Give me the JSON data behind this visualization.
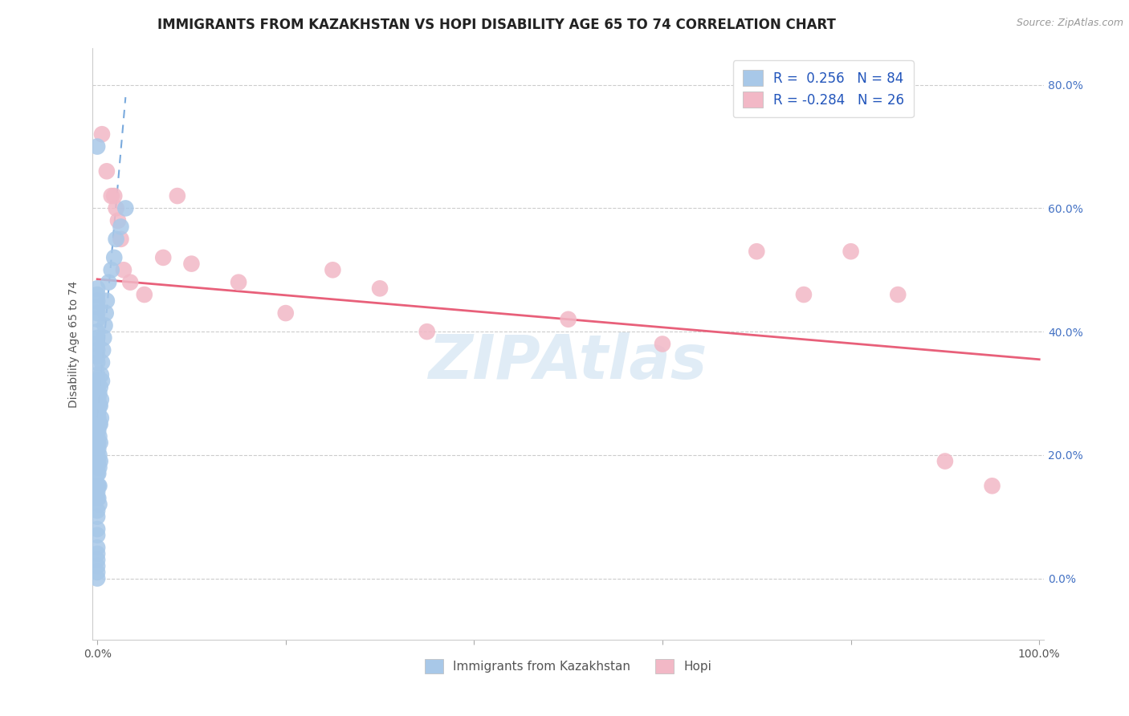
{
  "title": "IMMIGRANTS FROM KAZAKHSTAN VS HOPI DISABILITY AGE 65 TO 74 CORRELATION CHART",
  "source": "Source: ZipAtlas.com",
  "ylabel": "Disability Age 65 to 74",
  "xlim": [
    -0.005,
    1.005
  ],
  "ylim": [
    -0.1,
    0.86
  ],
  "xticks": [
    0.0,
    0.2,
    0.4,
    0.6,
    0.8,
    1.0
  ],
  "xticklabels": [
    "0.0%",
    "",
    "",
    "",
    "",
    "100.0%"
  ],
  "yticks": [
    0.0,
    0.2,
    0.4,
    0.6,
    0.8
  ],
  "yticklabels_right": [
    "0.0%",
    "20.0%",
    "40.0%",
    "60.0%",
    "80.0%"
  ],
  "blue_color": "#a8c8e8",
  "pink_color": "#f2b8c6",
  "blue_line_color": "#7aaadd",
  "pink_line_color": "#e8607a",
  "watermark": "ZIPAtlas",
  "title_fontsize": 12,
  "label_fontsize": 10,
  "tick_fontsize": 10,
  "kazakhstan_x": [
    0.0,
    0.0,
    0.0,
    0.0,
    0.0,
    0.0,
    0.0,
    0.0,
    0.0,
    0.0,
    0.0,
    0.0,
    0.0,
    0.0,
    0.0,
    0.0,
    0.0,
    0.0,
    0.0,
    0.0,
    0.0,
    0.0,
    0.0,
    0.0,
    0.0,
    0.0,
    0.0,
    0.0,
    0.0,
    0.0,
    0.0,
    0.0,
    0.0,
    0.0,
    0.0,
    0.0,
    0.0,
    0.0,
    0.0,
    0.0,
    0.001,
    0.001,
    0.001,
    0.001,
    0.001,
    0.001,
    0.001,
    0.001,
    0.001,
    0.001,
    0.002,
    0.002,
    0.002,
    0.002,
    0.002,
    0.002,
    0.002,
    0.002,
    0.003,
    0.003,
    0.003,
    0.003,
    0.003,
    0.004,
    0.004,
    0.004,
    0.005,
    0.005,
    0.006,
    0.007,
    0.008,
    0.009,
    0.01,
    0.012,
    0.015,
    0.018,
    0.02,
    0.025,
    0.03
  ],
  "kazakhstan_y": [
    0.3,
    0.28,
    0.27,
    0.26,
    0.25,
    0.24,
    0.23,
    0.22,
    0.2,
    0.18,
    0.17,
    0.15,
    0.14,
    0.13,
    0.11,
    0.1,
    0.08,
    0.07,
    0.05,
    0.04,
    0.03,
    0.02,
    0.01,
    0.0,
    0.32,
    0.31,
    0.33,
    0.35,
    0.36,
    0.37,
    0.38,
    0.39,
    0.4,
    0.42,
    0.43,
    0.44,
    0.45,
    0.46,
    0.47,
    0.7,
    0.29,
    0.27,
    0.26,
    0.24,
    0.22,
    0.21,
    0.19,
    0.17,
    0.15,
    0.13,
    0.3,
    0.28,
    0.25,
    0.23,
    0.2,
    0.18,
    0.15,
    0.12,
    0.31,
    0.28,
    0.25,
    0.22,
    0.19,
    0.33,
    0.29,
    0.26,
    0.35,
    0.32,
    0.37,
    0.39,
    0.41,
    0.43,
    0.45,
    0.48,
    0.5,
    0.52,
    0.55,
    0.57,
    0.6
  ],
  "kazakhstan_trendline_x": [
    0.0,
    0.03
  ],
  "kazakhstan_trendline_y": [
    0.26,
    0.78
  ],
  "hopi_x": [
    0.005,
    0.01,
    0.015,
    0.018,
    0.02,
    0.022,
    0.025,
    0.028,
    0.035,
    0.05,
    0.07,
    0.085,
    0.1,
    0.15,
    0.2,
    0.25,
    0.3,
    0.35,
    0.5,
    0.6,
    0.7,
    0.75,
    0.8,
    0.85,
    0.9,
    0.95
  ],
  "hopi_y": [
    0.72,
    0.66,
    0.62,
    0.62,
    0.6,
    0.58,
    0.55,
    0.5,
    0.48,
    0.46,
    0.52,
    0.62,
    0.51,
    0.48,
    0.43,
    0.5,
    0.47,
    0.4,
    0.42,
    0.38,
    0.53,
    0.46,
    0.53,
    0.46,
    0.19,
    0.15
  ],
  "hopi_trendline_x": [
    0.0,
    1.0
  ],
  "hopi_trendline_y": [
    0.485,
    0.355
  ]
}
